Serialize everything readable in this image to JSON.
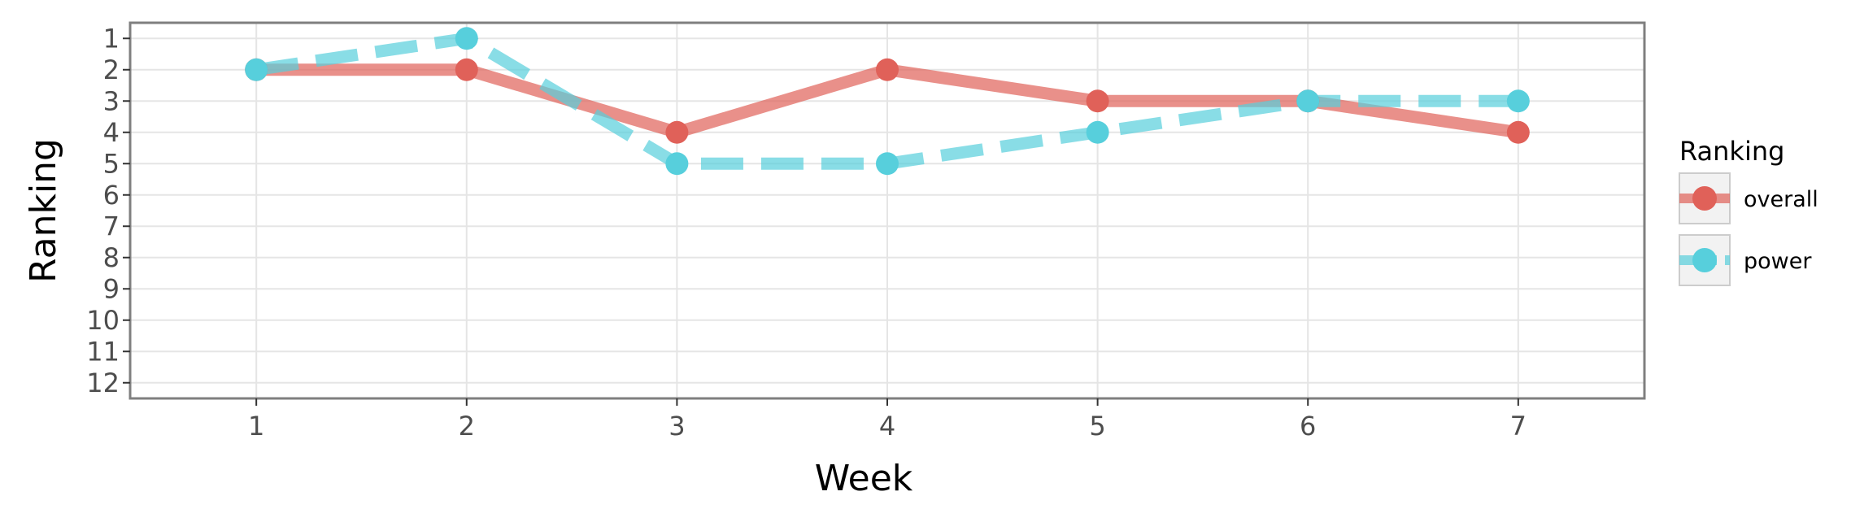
{
  "chart_data": {
    "type": "line",
    "xlabel": "Week",
    "ylabel": "Ranking",
    "x": [
      1,
      2,
      3,
      4,
      5,
      6,
      7
    ],
    "xlim": [
      0.4,
      7.6
    ],
    "ylim": [
      12.5,
      0.5
    ],
    "y_reversed": true,
    "x_ticks": [
      "1",
      "2",
      "3",
      "4",
      "5",
      "6",
      "7"
    ],
    "y_ticks": [
      "1",
      "2",
      "3",
      "4",
      "5",
      "6",
      "7",
      "8",
      "9",
      "10",
      "11",
      "12"
    ],
    "grid": true,
    "legend": {
      "title": "Ranking",
      "position": "right"
    },
    "series": [
      {
        "name": "overall",
        "values": [
          2,
          2,
          4,
          2,
          3,
          3,
          4
        ],
        "color": "#e06159",
        "line_style": "solid"
      },
      {
        "name": "power",
        "values": [
          2,
          1,
          5,
          5,
          4,
          3,
          3
        ],
        "color": "#57cfdc",
        "line_style": "dashed"
      }
    ]
  }
}
